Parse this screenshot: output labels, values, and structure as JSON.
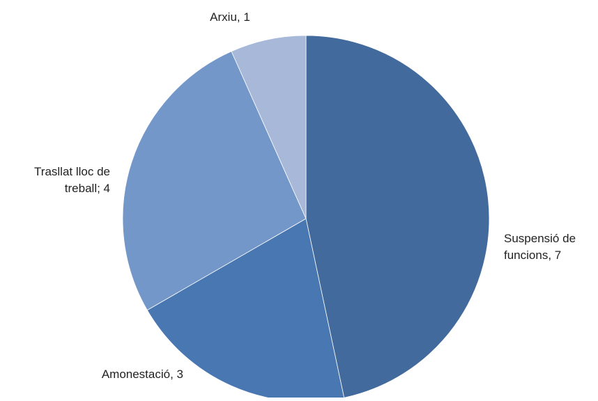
{
  "chart_data": {
    "type": "pie",
    "slices": [
      {
        "label": "Suspensió de funcions",
        "label_lines": [
          "Suspensió de",
          "funcions, 7"
        ],
        "value": 7,
        "color": "#426a9c"
      },
      {
        "label": "Amonestació",
        "label_lines": [
          "Amonestació, 3"
        ],
        "value": 3,
        "color": "#4977b2"
      },
      {
        "label": "Trasllat lloc de treball",
        "label_lines": [
          "Trasllat lloc de",
          "treball; 4"
        ],
        "value": 4,
        "color": "#7397c8"
      },
      {
        "label": "Arxiu",
        "label_lines": [
          "Arxiu, 1"
        ],
        "value": 1,
        "color": "#a7b8d8"
      }
    ],
    "start_angle": "12 o'clock",
    "direction": "clockwise",
    "legend": "none"
  }
}
